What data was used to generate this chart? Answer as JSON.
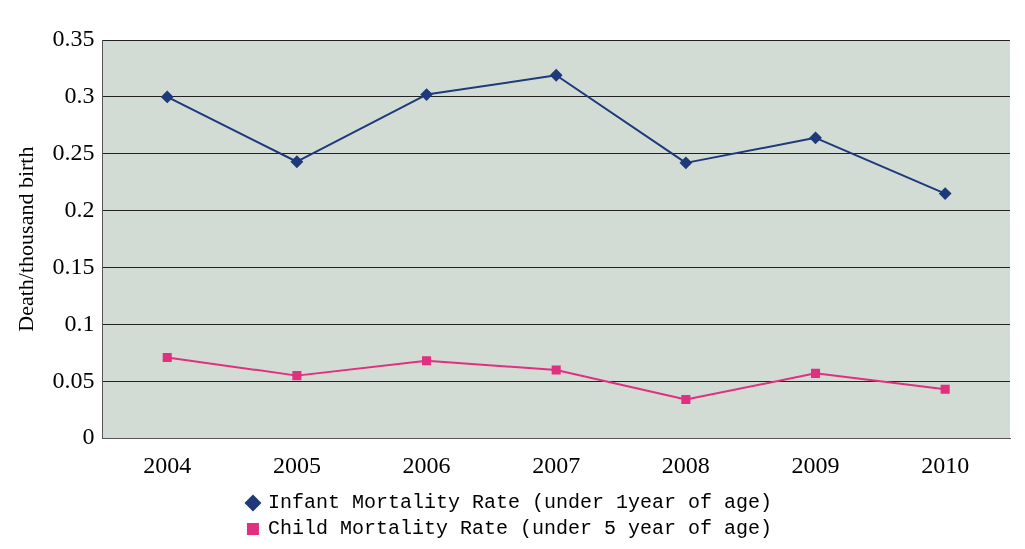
{
  "chart_data": {
    "type": "line",
    "ylabel": "Death/thousand birth",
    "categories": [
      "2004",
      "2005",
      "2006",
      "2007",
      "2008",
      "2009",
      "2010"
    ],
    "series": [
      {
        "name": "Infant Mortality Rate (under 1year of age)",
        "color": "#1f3a7a",
        "marker": "diamond",
        "values": [
          0.3,
          0.243,
          0.302,
          0.319,
          0.242,
          0.264,
          0.215
        ]
      },
      {
        "name": "Child Mortality Rate (under 5 year of age)",
        "color": "#e0307f",
        "marker": "square",
        "values": [
          0.071,
          0.055,
          0.068,
          0.06,
          0.034,
          0.057,
          0.043
        ]
      }
    ],
    "ylim": [
      0,
      0.35
    ],
    "yticks": [
      0,
      0.05,
      0.1,
      0.15,
      0.2,
      0.25,
      0.3,
      0.35
    ],
    "grid": "y",
    "legend": "bottom",
    "line_style": "solid"
  }
}
